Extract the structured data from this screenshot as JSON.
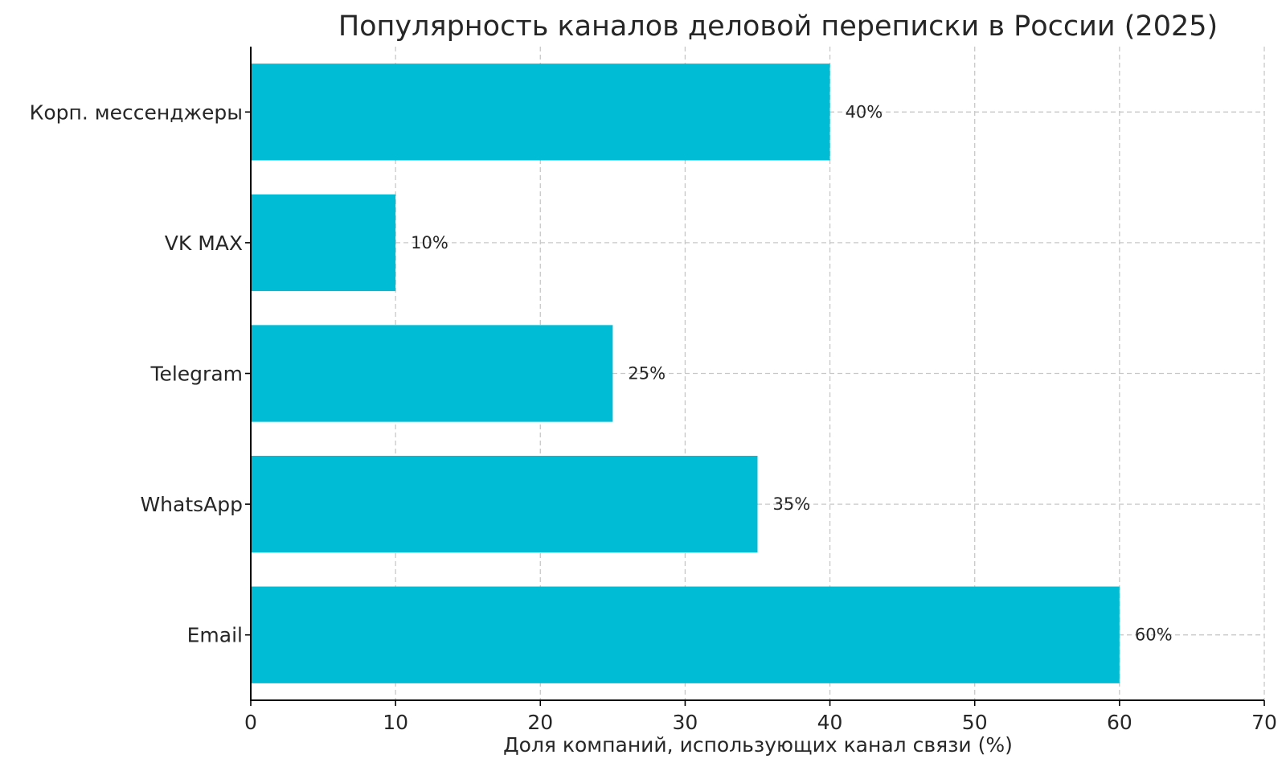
{
  "chart_data": {
    "type": "bar",
    "orientation": "horizontal",
    "title": "Популярность каналов деловой переписки в России (2025)",
    "xlabel": "Доля компаний, использующих канал связи (%)",
    "ylabel": "",
    "categories": [
      "Email",
      "WhatsApp",
      "Telegram",
      "VK MAX",
      "Корп. мессенджеры"
    ],
    "values": [
      60,
      35,
      25,
      10,
      40
    ],
    "data_labels": [
      "60%",
      "35%",
      "25%",
      "10%",
      "40%"
    ],
    "xlim": [
      0,
      70
    ],
    "xticks": [
      0,
      10,
      20,
      30,
      40,
      50,
      60,
      70
    ],
    "grid": true,
    "legend": "none",
    "bar_color": "#00BCD4"
  }
}
